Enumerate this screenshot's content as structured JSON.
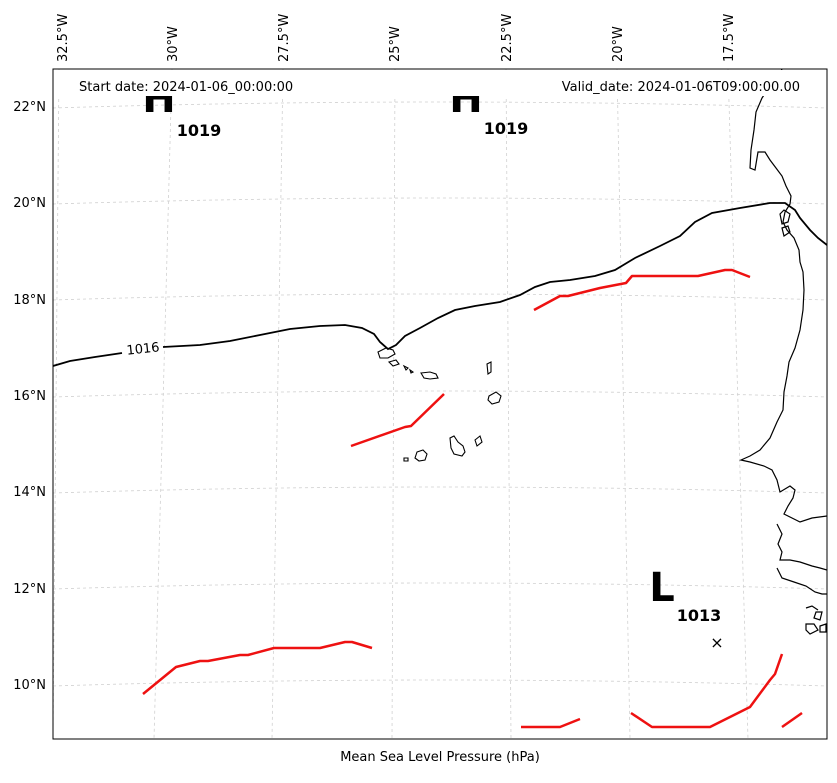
{
  "map": {
    "start_label": "Start date: 2024-01-06_00:00:00",
    "valid_label": "Valid_date: 2024-01-06T09:00:00.00",
    "xlabel": "Mean Sea Level Pressure (hPa)",
    "lon_labels": [
      "32.5°W",
      "30°W",
      "27.5°W",
      "25°W",
      "22.5°W",
      "20°W",
      "17.5°W"
    ],
    "lat_labels": [
      "22°N",
      "20°N",
      "18°N",
      "16°N",
      "14°N",
      "12°N",
      "10°N"
    ],
    "isobar_label": "1016",
    "highs": [
      {
        "symbol": "H",
        "value": "1019"
      },
      {
        "symbol": "H",
        "value": "1019"
      }
    ],
    "low": {
      "symbol": "L",
      "value": "1013"
    },
    "low_marker": "×",
    "colors": {
      "isobar": "#000000",
      "front": "#ee1111",
      "grid": "#d0d0d0",
      "coast": "#000000"
    }
  }
}
